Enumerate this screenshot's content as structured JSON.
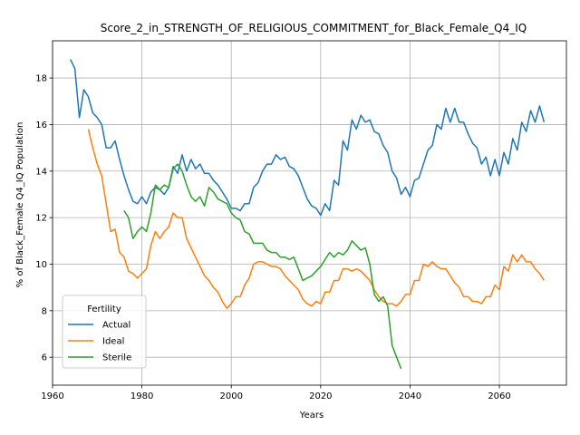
{
  "chart_data": {
    "type": "line",
    "title": "Score_2_in_STRENGTH_OF_RELIGIOUS_COMMITMENT_for_Black_Female_Q4_IQ",
    "xlabel": "Years",
    "ylabel": "% of Black_Female Q4_IQ Population",
    "xlim": [
      1960,
      2075
    ],
    "ylim": [
      4.8,
      19.6
    ],
    "xticks": [
      1960,
      1980,
      2000,
      2020,
      2040,
      2060
    ],
    "yticks": [
      6,
      8,
      10,
      12,
      14,
      16,
      18
    ],
    "grid": true,
    "legend": {
      "title": "Fertility",
      "position": "bottom-left"
    },
    "series": [
      {
        "name": "Actual",
        "color": "#1f77b4",
        "x": [
          1964,
          1965,
          1966,
          1967,
          1968,
          1969,
          1970,
          1971,
          1972,
          1973,
          1974,
          1975,
          1976,
          1977,
          1978,
          1979,
          1980,
          1981,
          1982,
          1983,
          1984,
          1985,
          1986,
          1987,
          1988,
          1989,
          1990,
          1991,
          1992,
          1993,
          1994,
          1995,
          1996,
          1997,
          1998,
          1999,
          2000,
          2001,
          2002,
          2003,
          2004,
          2005,
          2006,
          2007,
          2008,
          2009,
          2010,
          2011,
          2012,
          2013,
          2014,
          2015,
          2016,
          2017,
          2018,
          2019,
          2020,
          2021,
          2022,
          2023,
          2024,
          2025,
          2026,
          2027,
          2028,
          2029,
          2030,
          2031,
          2032,
          2033,
          2034,
          2035,
          2036,
          2037,
          2038,
          2039,
          2040,
          2041,
          2042,
          2043,
          2044,
          2045,
          2046,
          2047,
          2048,
          2049,
          2050,
          2051,
          2052,
          2053,
          2054,
          2055,
          2056,
          2057,
          2058,
          2059,
          2060,
          2061,
          2062,
          2063,
          2064,
          2065,
          2066,
          2067,
          2068,
          2069,
          2070
        ],
        "values": [
          18.8,
          18.4,
          16.3,
          17.5,
          17.2,
          16.5,
          16.3,
          16.0,
          15.0,
          15.0,
          15.3,
          14.5,
          13.8,
          13.2,
          12.7,
          12.6,
          12.9,
          12.6,
          13.1,
          13.3,
          13.2,
          13.0,
          13.3,
          14.2,
          13.9,
          14.7,
          14.0,
          14.5,
          14.1,
          14.3,
          13.9,
          13.9,
          13.6,
          13.4,
          13.1,
          12.8,
          12.4,
          12.4,
          12.3,
          12.6,
          12.6,
          13.3,
          13.5,
          14.0,
          14.3,
          14.3,
          14.7,
          14.5,
          14.6,
          14.2,
          14.1,
          13.8,
          13.3,
          12.8,
          12.5,
          12.4,
          12.1,
          12.6,
          12.3,
          13.6,
          13.4,
          15.3,
          14.9,
          16.2,
          15.8,
          16.4,
          16.1,
          16.2,
          15.7,
          15.6,
          15.1,
          14.8,
          14.0,
          13.7,
          13.0,
          13.3,
          12.9,
          13.6,
          13.7,
          14.3,
          14.9,
          15.1,
          16.0,
          15.8,
          16.7,
          16.1,
          16.7,
          16.1,
          16.1,
          15.6,
          15.2,
          15.0,
          14.3,
          14.6,
          13.8,
          14.5,
          13.8,
          14.8,
          14.3,
          15.4,
          14.9,
          16.1,
          15.7,
          16.6,
          16.1,
          16.8,
          16.1
        ]
      },
      {
        "name": "Ideal",
        "color": "#ff7f0e",
        "x": [
          1968,
          1969,
          1970,
          1971,
          1972,
          1973,
          1974,
          1975,
          1976,
          1977,
          1978,
          1979,
          1980,
          1981,
          1982,
          1983,
          1984,
          1985,
          1986,
          1987,
          1988,
          1989,
          1990,
          1991,
          1992,
          1993,
          1994,
          1995,
          1996,
          1997,
          1998,
          1999,
          2000,
          2001,
          2002,
          2003,
          2004,
          2005,
          2006,
          2007,
          2008,
          2009,
          2010,
          2011,
          2012,
          2013,
          2014,
          2015,
          2016,
          2017,
          2018,
          2019,
          2020,
          2021,
          2022,
          2023,
          2024,
          2025,
          2026,
          2027,
          2028,
          2029,
          2030,
          2031,
          2032,
          2033,
          2034,
          2035,
          2036,
          2037,
          2038,
          2039,
          2040,
          2041,
          2042,
          2043,
          2044,
          2045,
          2046,
          2047,
          2048,
          2049,
          2050,
          2051,
          2052,
          2053,
          2054,
          2055,
          2056,
          2057,
          2058,
          2059,
          2060,
          2061,
          2062,
          2063,
          2064,
          2065,
          2066,
          2067,
          2068,
          2069,
          2070
        ],
        "values": [
          15.8,
          15.0,
          14.3,
          13.8,
          12.6,
          11.4,
          11.5,
          10.5,
          10.3,
          9.7,
          9.6,
          9.4,
          9.6,
          9.8,
          10.8,
          11.4,
          11.1,
          11.4,
          11.6,
          12.2,
          12.0,
          12.0,
          11.1,
          10.7,
          10.3,
          9.9,
          9.5,
          9.3,
          9.0,
          8.8,
          8.4,
          8.1,
          8.3,
          8.6,
          8.6,
          9.1,
          9.4,
          10.0,
          10.1,
          10.1,
          10.0,
          9.9,
          9.9,
          9.8,
          9.5,
          9.3,
          9.1,
          8.9,
          8.5,
          8.3,
          8.2,
          8.4,
          8.3,
          8.8,
          8.8,
          9.3,
          9.3,
          9.8,
          9.8,
          9.7,
          9.8,
          9.7,
          9.5,
          9.3,
          8.9,
          8.6,
          8.4,
          8.3,
          8.3,
          8.2,
          8.4,
          8.7,
          8.7,
          9.3,
          9.3,
          10.0,
          9.9,
          10.1,
          9.9,
          9.8,
          9.8,
          9.5,
          9.2,
          9.0,
          8.6,
          8.6,
          8.4,
          8.4,
          8.3,
          8.6,
          8.6,
          9.1,
          8.9,
          9.9,
          9.7,
          10.4,
          10.1,
          10.4,
          10.1,
          10.1,
          9.8,
          9.6,
          9.3
        ]
      },
      {
        "name": "Sterile",
        "color": "#2ca02c",
        "x": [
          1976,
          1977,
          1978,
          1979,
          1980,
          1981,
          1982,
          1983,
          1984,
          1985,
          1986,
          1987,
          1988,
          1989,
          1990,
          1991,
          1992,
          1993,
          1994,
          1995,
          1996,
          1997,
          1998,
          1999,
          2000,
          2001,
          2002,
          2003,
          2004,
          2005,
          2006,
          2007,
          2008,
          2009,
          2010,
          2011,
          2012,
          2013,
          2014,
          2015,
          2016,
          2017,
          2018,
          2019,
          2020,
          2021,
          2022,
          2023,
          2024,
          2025,
          2026,
          2027,
          2028,
          2029,
          2030,
          2031,
          2032,
          2033,
          2034,
          2035,
          2036,
          2037,
          2038
        ],
        "values": [
          12.3,
          12.0,
          11.1,
          11.4,
          11.6,
          11.4,
          12.2,
          13.4,
          13.2,
          13.4,
          13.3,
          14.1,
          14.3,
          14.0,
          13.4,
          12.9,
          12.7,
          12.9,
          12.5,
          13.3,
          13.1,
          12.8,
          12.7,
          12.6,
          12.2,
          12.0,
          11.9,
          11.4,
          11.3,
          10.9,
          10.9,
          10.9,
          10.6,
          10.5,
          10.5,
          10.3,
          10.3,
          10.2,
          10.3,
          9.8,
          9.3,
          9.4,
          9.5,
          9.7,
          9.9,
          10.2,
          10.5,
          10.3,
          10.5,
          10.4,
          10.6,
          11.0,
          10.8,
          10.6,
          10.7,
          10.0,
          8.7,
          8.4,
          8.6,
          8.2,
          6.5,
          6.0,
          5.5
        ]
      }
    ]
  }
}
